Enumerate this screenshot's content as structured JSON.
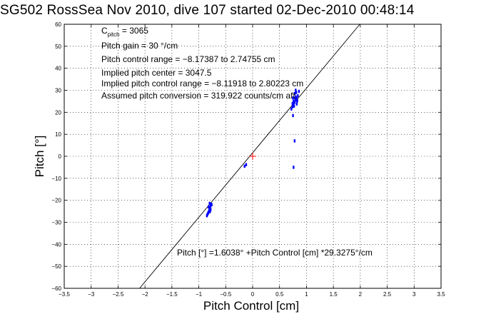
{
  "title": "SG502 RossSea Nov 2010, dive 107 started 02-Dec-2010 00:48:14",
  "chart_data": {
    "type": "scatter",
    "title": "SG502 RossSea Nov 2010, dive 107 started 02-Dec-2010 00:48:14",
    "xlabel": "Pitch Control [cm]",
    "ylabel": "Pitch [°]",
    "xlim": [
      -3.5,
      3.5
    ],
    "ylim": [
      -60,
      60
    ],
    "xticks": [
      -3.5,
      -3,
      -2.5,
      -2,
      -1.5,
      -1,
      -0.5,
      0,
      0.5,
      1,
      1.5,
      2,
      2.5,
      3,
      3.5
    ],
    "yticks": [
      -60,
      -50,
      -40,
      -30,
      -20,
      -10,
      0,
      10,
      20,
      30,
      40,
      50,
      60
    ],
    "xtick_labels": [
      "−3.5",
      "−3",
      "−2.5",
      "−2",
      "−1.5",
      "−1",
      "−0.5",
      "0",
      "0.5",
      "1",
      "1.5",
      "2",
      "2.5",
      "3",
      "3.5"
    ],
    "ytick_labels": [
      "−60",
      "−50",
      "−40",
      "−30",
      "−20",
      "−10",
      "0",
      "10",
      "20",
      "30",
      "40",
      "50",
      "60"
    ],
    "grid": true,
    "fit_line": {
      "intercept": 1.6038,
      "slope": 29.3275
    },
    "center_marker": {
      "x": 0,
      "y": 0,
      "color": "#ff0000",
      "symbol": "+"
    },
    "series": [
      {
        "color": "#0000ff",
        "points": [
          [
            -0.82,
            -25.5
          ],
          [
            -0.8,
            -24.0
          ],
          [
            -0.78,
            -22.5
          ],
          [
            -0.84,
            -26.5
          ],
          [
            -0.79,
            -23.2
          ],
          [
            -0.81,
            -24.8
          ],
          [
            -0.77,
            -21.8
          ],
          [
            -0.83,
            -25.9
          ],
          [
            -0.8,
            -23.6
          ],
          [
            -0.76,
            -22.0
          ],
          [
            -0.85,
            -27.0
          ],
          [
            -0.78,
            -24.2
          ],
          [
            -0.82,
            -23.0
          ],
          [
            -0.79,
            -25.1
          ],
          [
            -0.8,
            -21.4
          ],
          [
            -0.15,
            -4.5
          ],
          [
            -0.12,
            -3.8
          ],
          [
            0.72,
            21.5
          ],
          [
            0.74,
            22.5
          ],
          [
            0.76,
            23.5
          ],
          [
            0.78,
            24.5
          ],
          [
            0.8,
            25.5
          ],
          [
            0.82,
            26.5
          ],
          [
            0.84,
            27.5
          ],
          [
            0.78,
            28.5
          ],
          [
            0.8,
            27.0
          ],
          [
            0.76,
            25.0
          ],
          [
            0.82,
            23.8
          ],
          [
            0.74,
            24.0
          ],
          [
            0.86,
            29.5
          ],
          [
            0.79,
            26.2
          ],
          [
            0.81,
            29.0
          ],
          [
            0.77,
            22.8
          ],
          [
            0.83,
            25.2
          ],
          [
            0.75,
            26.5
          ],
          [
            0.8,
            30.0
          ],
          [
            0.75,
            18.5
          ],
          [
            0.78,
            7.0
          ],
          [
            0.76,
            -5.0
          ]
        ]
      }
    ],
    "annotations": {
      "cpitch_main": "C",
      "cpitch_sub": "pitch",
      "cpitch_value": " = 3065",
      "pitch_gain": "Pitch gain = 30 °/cm",
      "control_range": "Pitch control range = −8.17387 to 2.74755 cm",
      "implied_center": "Implied pitch center = 3047.5",
      "implied_range": "Implied pitch control range = −8.11918 to 2.80223 cm",
      "conversion": "Assumed pitch conversion = 319.922 counts/cm aft",
      "fit_equation": "Pitch [°] =1.6038° +Pitch Control [cm] *29.3275°/cm"
    }
  }
}
